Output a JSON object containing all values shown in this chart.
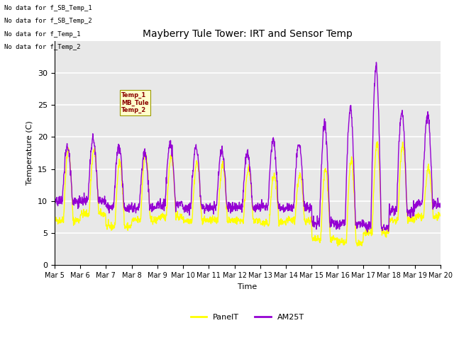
{
  "title": "Mayberry Tule Tower: IRT and Sensor Temp",
  "xlabel": "Time",
  "ylabel": "Temperature (C)",
  "ylim": [
    0,
    35
  ],
  "yticks": [
    0,
    5,
    10,
    15,
    20,
    25,
    30
  ],
  "legend_labels": [
    "PanelT",
    "AM25T"
  ],
  "panel_color": "#ffff00",
  "am25_color": "#9400d3",
  "bg_color": "#e8e8e8",
  "no_data_lines": [
    "No data for f_SB_Temp_1",
    "No data for f_SB_Temp_2",
    "No data for f_Temp_1",
    "No data for f_Temp_2"
  ],
  "xtick_labels": [
    "Mar 5",
    "Mar 6",
    "Mar 7",
    "Mar 8",
    "Mar 9",
    "Mar 10",
    "Mar 11",
    "Mar 12",
    "Mar 13",
    "Mar 14",
    "Mar 15",
    "Mar 16",
    "Mar 17",
    "Mar 18",
    "Mar 19",
    "Mar 20"
  ],
  "num_points": 1500,
  "days": 15
}
